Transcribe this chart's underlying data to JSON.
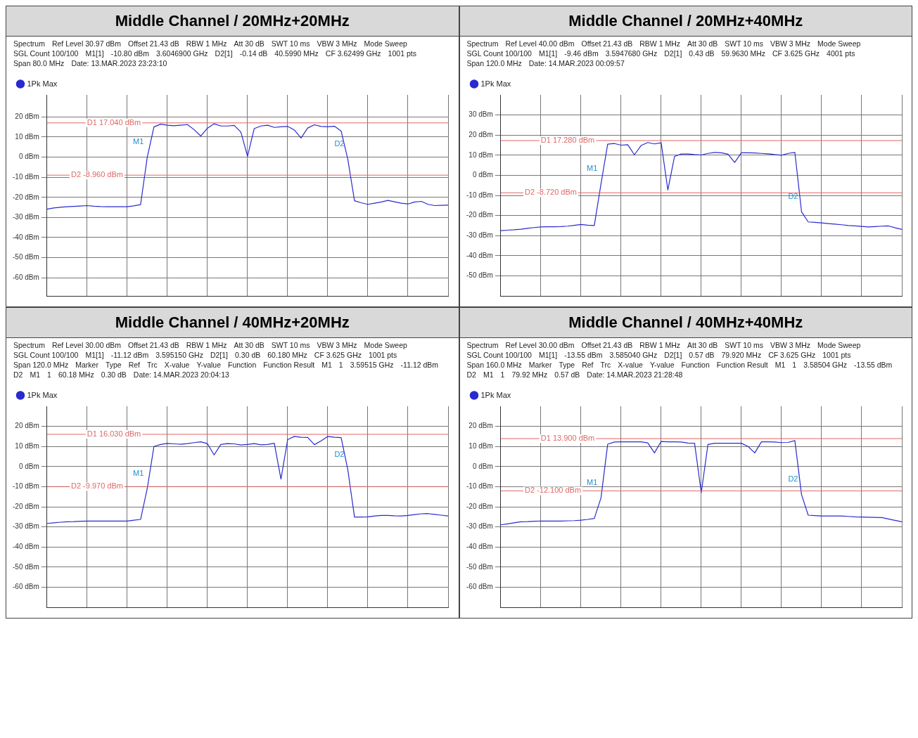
{
  "chart_data": [
    {
      "type": "line",
      "title": "Middle Channel / 20MHz+20MHz",
      "legend": "top left",
      "grid": true,
      "tick_labels": "y",
      "annotations": [
        "Spectrum",
        "Ref Level 30.97 dBm",
        "Offset 21.43 dB",
        "RBW 1 MHz",
        "Att 30 dB",
        "SWT 10 ms",
        "VBW 3 MHz",
        "Mode Sweep",
        "SGL Count 100/100",
        "M1[1]",
        "-10.80 dBm",
        "3.6046900 GHz",
        "D2[1]",
        "-0.14 dB",
        "40.5990 MHz",
        "CF 3.62499 GHz",
        "1001 pts",
        "Span 80.0 MHz",
        "Date: 13.MAR.2023 23:23:10"
      ],
      "categories": [
        null,
        null,
        null,
        null,
        null,
        null,
        null,
        null,
        null,
        null,
        null,
        null,
        null,
        null,
        null,
        null,
        null,
        null,
        null,
        null,
        null,
        null,
        null,
        null,
        null,
        null,
        null,
        null,
        null,
        null,
        null,
        null,
        null,
        null,
        null,
        null,
        null,
        null,
        null,
        null,
        null,
        null,
        null,
        null,
        null,
        null,
        null,
        null,
        null,
        null,
        null,
        null,
        null,
        null,
        null,
        null,
        null,
        null,
        null,
        null,
        null
      ],
      "ylim": [
        -69.03,
        30.97
      ],
      "yticks": [
        {
          "value": 20,
          "label": "20 dBm"
        },
        {
          "value": 10,
          "label": "10 dBm"
        },
        {
          "value": 0,
          "label": "0 dBm"
        },
        {
          "value": -10,
          "label": "-10 dBm"
        },
        {
          "value": -20,
          "label": "-20 dBm"
        },
        {
          "value": -30,
          "label": "-30 dBm"
        },
        {
          "value": -40,
          "label": "-40 dBm"
        },
        {
          "value": -50,
          "label": "-50 dBm"
        },
        {
          "value": -60,
          "label": "-60 dBm"
        }
      ],
      "ref_lines": [
        {
          "axis": "y",
          "value": 17.04,
          "label": "D1 17.040 dBm",
          "color": "#e06666"
        },
        {
          "axis": "y",
          "value": -8.96,
          "label": "D2 -8.960 dBm",
          "color": "#e06666"
        }
      ],
      "series": [
        {
          "name": "1Pk Max",
          "color": "#2a2ad0",
          "values": [
            -25.9,
            -25.3,
            -24.9,
            -24.7,
            -24.5,
            -24.3,
            -24.1,
            -24.4,
            -24.6,
            -24.7,
            -24.7,
            -24.7,
            -24.7,
            -24.2,
            -23.6,
            0,
            15.0,
            16.4,
            15.9,
            15.6,
            15.9,
            16.2,
            13.7,
            10.5,
            14.4,
            16.6,
            15.5,
            15.5,
            15.8,
            12.5,
            0.4,
            14.2,
            15.5,
            15.9,
            14.8,
            15.1,
            15.3,
            13.5,
            9.5,
            14.5,
            16.1,
            15.3,
            15.1,
            15.4,
            13.0,
            -1.1,
            -21.7,
            -22.7,
            -23.5,
            -22.9,
            -22.3,
            -21.5,
            -22.2,
            -22.9,
            -23.3,
            -22.3,
            -22.0,
            -23.5,
            -24.1,
            -24.0,
            -23.9
          ],
          "value_labels": [
            null,
            null,
            null,
            null,
            null,
            null,
            null,
            null,
            null,
            null,
            null,
            null,
            null,
            null,
            null,
            "M1",
            null,
            null,
            null,
            null,
            null,
            null,
            null,
            null,
            null,
            null,
            null,
            null,
            null,
            null,
            null,
            null,
            null,
            null,
            null,
            null,
            null,
            null,
            null,
            null,
            null,
            null,
            null,
            null,
            null,
            "D2",
            null,
            null,
            null,
            null,
            null,
            null,
            null,
            null,
            null,
            null,
            null,
            null,
            null,
            null,
            null
          ]
        }
      ]
    },
    {
      "type": "line",
      "title": "Middle Channel / 20MHz+40MHz",
      "legend": "top left",
      "grid": true,
      "tick_labels": "y",
      "annotations": [
        "Spectrum",
        "Ref Level 40.00 dBm",
        "Offset 21.43 dB",
        "RBW 1 MHz",
        "Att 30 dB",
        "SWT 10 ms",
        "VBW 3 MHz",
        "Mode Sweep",
        "SGL Count 100/100",
        "M1[1]",
        "-9.46 dBm",
        "3.5947680 GHz",
        "D2[1]",
        "0.43 dB",
        "59.9630 MHz",
        "CF 3.625 GHz",
        "4001 pts",
        "Span 120.0 MHz",
        "Date: 14.MAR.2023 00:09:57"
      ],
      "categories": [
        null,
        null,
        null,
        null,
        null,
        null,
        null,
        null,
        null,
        null,
        null,
        null,
        null,
        null,
        null,
        null,
        null,
        null,
        null,
        null,
        null,
        null,
        null,
        null,
        null,
        null,
        null,
        null,
        null,
        null,
        null,
        null,
        null,
        null,
        null,
        null,
        null,
        null,
        null,
        null,
        null,
        null,
        null,
        null,
        null,
        null,
        null,
        null,
        null,
        null,
        null,
        null,
        null,
        null,
        null,
        null,
        null,
        null,
        null,
        null,
        null
      ],
      "ylim": [
        -60,
        40
      ],
      "yticks": [
        {
          "value": 30,
          "label": "30 dBm"
        },
        {
          "value": 20,
          "label": "20 dBm"
        },
        {
          "value": 10,
          "label": "10 dBm"
        },
        {
          "value": 0,
          "label": "0 dBm"
        },
        {
          "value": -10,
          "label": "-10 dBm"
        },
        {
          "value": -20,
          "label": "-20 dBm"
        },
        {
          "value": -30,
          "label": "-30 dBm"
        },
        {
          "value": -40,
          "label": "-40 dBm"
        },
        {
          "value": -50,
          "label": "-50 dBm"
        }
      ],
      "ref_lines": [
        {
          "axis": "y",
          "value": 17.28,
          "label": "D1 17.280 dBm",
          "color": "#e06666"
        },
        {
          "axis": "y",
          "value": -8.72,
          "label": "D2 -8.720 dBm",
          "color": "#e06666"
        }
      ],
      "series": [
        {
          "name": "1Pk Max",
          "color": "#2a2ad0",
          "values": [
            -27.5,
            -27.3,
            -27.1,
            -26.8,
            -26.4,
            -26.0,
            -25.7,
            -25.6,
            -25.6,
            -25.5,
            -25.3,
            -24.9,
            -24.5,
            -24.8,
            -25.0,
            -4.3,
            15.5,
            15.8,
            15.0,
            15.2,
            10.2,
            14.8,
            16.3,
            15.6,
            16.2,
            -7.3,
            9.4,
            10.6,
            10.6,
            10.3,
            10.1,
            10.9,
            11.4,
            11.2,
            10.5,
            6.4,
            11.2,
            11.2,
            11.1,
            10.9,
            10.7,
            10.3,
            10.0,
            10.9,
            11.4,
            -18.2,
            -23.2,
            -23.4,
            -23.7,
            -24.0,
            -24.3,
            -24.6,
            -25.0,
            -25.2,
            -25.4,
            -25.7,
            -25.5,
            -25.3,
            -25.2,
            -26.1,
            -26.9
          ],
          "value_labels": [
            null,
            null,
            null,
            null,
            null,
            null,
            null,
            null,
            null,
            null,
            null,
            null,
            null,
            null,
            null,
            "M1",
            null,
            null,
            null,
            null,
            null,
            null,
            null,
            null,
            null,
            null,
            null,
            null,
            null,
            null,
            null,
            null,
            null,
            null,
            null,
            null,
            null,
            null,
            null,
            null,
            null,
            null,
            null,
            null,
            null,
            "D2",
            null,
            null,
            null,
            null,
            null,
            null,
            null,
            null,
            null,
            null,
            null,
            null,
            null,
            null,
            null
          ]
        }
      ]
    },
    {
      "type": "line",
      "title": "Middle Channel / 40MHz+20MHz",
      "legend": "top left",
      "grid": true,
      "tick_labels": "y",
      "annotations": [
        "Spectrum",
        "Ref Level 30.00 dBm",
        "Offset 21.43 dB",
        "RBW 1 MHz",
        "Att 30 dB",
        "SWT 10 ms",
        "VBW 3 MHz",
        "Mode Sweep",
        "SGL Count 100/100",
        "M1[1]",
        "-11.12 dBm",
        "3.595150 GHz",
        "D2[1]",
        "0.30 dB",
        "60.180 MHz",
        "CF 3.625 GHz",
        "1001 pts",
        "Span 120.0 MHz",
        "Marker",
        "Type",
        "Ref",
        "Trc",
        "X-value",
        "Y-value",
        "Function",
        "Function Result",
        "M1",
        "1",
        "3.59515 GHz",
        "-11.12 dBm",
        "D2",
        "M1",
        "1",
        "60.18 MHz",
        "0.30 dB",
        "Date: 14.MAR.2023 20:04:13"
      ],
      "categories": [
        null,
        null,
        null,
        null,
        null,
        null,
        null,
        null,
        null,
        null,
        null,
        null,
        null,
        null,
        null,
        null,
        null,
        null,
        null,
        null,
        null,
        null,
        null,
        null,
        null,
        null,
        null,
        null,
        null,
        null,
        null,
        null,
        null,
        null,
        null,
        null,
        null,
        null,
        null,
        null,
        null,
        null,
        null,
        null,
        null,
        null,
        null,
        null,
        null,
        null,
        null,
        null,
        null,
        null,
        null,
        null,
        null,
        null,
        null,
        null,
        null
      ],
      "ylim": [
        -70,
        30
      ],
      "yticks": [
        {
          "value": 20,
          "label": "20 dBm"
        },
        {
          "value": 10,
          "label": "10 dBm"
        },
        {
          "value": 0,
          "label": "0 dBm"
        },
        {
          "value": -10,
          "label": "-10 dBm"
        },
        {
          "value": -20,
          "label": "-20 dBm"
        },
        {
          "value": -30,
          "label": "-30 dBm"
        },
        {
          "value": -40,
          "label": "-40 dBm"
        },
        {
          "value": -50,
          "label": "-50 dBm"
        },
        {
          "value": -60,
          "label": "-60 dBm"
        }
      ],
      "ref_lines": [
        {
          "axis": "y",
          "value": 16.03,
          "label": "D1 16.030 dBm",
          "color": "#e06666"
        },
        {
          "axis": "y",
          "value": -9.97,
          "label": "D2 -9.970 dBm",
          "color": "#e06666"
        }
      ],
      "series": [
        {
          "name": "1Pk Max",
          "color": "#2a2ad0",
          "values": [
            -28.3,
            -28.0,
            -27.7,
            -27.5,
            -27.4,
            -27.2,
            -27.1,
            -27.1,
            -27.1,
            -27.1,
            -27.1,
            -27.1,
            -27.1,
            -26.7,
            -26.3,
            -10.9,
            10.0,
            11.0,
            11.5,
            11.3,
            11.1,
            11.4,
            11.9,
            12.3,
            11.4,
            5.8,
            11.0,
            11.4,
            11.3,
            10.7,
            11.0,
            11.4,
            10.8,
            11.0,
            11.6,
            -6.2,
            13.4,
            15.0,
            14.6,
            14.5,
            10.9,
            12.8,
            15.0,
            14.6,
            14.4,
            -1.6,
            -25.1,
            -25.1,
            -25.0,
            -24.6,
            -24.3,
            -24.3,
            -24.5,
            -24.6,
            -24.3,
            -23.9,
            -23.5,
            -23.4,
            -23.8,
            -24.2,
            -24.6
          ],
          "value_labels": [
            null,
            null,
            null,
            null,
            null,
            null,
            null,
            null,
            null,
            null,
            null,
            null,
            null,
            null,
            null,
            "M1",
            null,
            null,
            null,
            null,
            null,
            null,
            null,
            null,
            null,
            null,
            null,
            null,
            null,
            null,
            null,
            null,
            null,
            null,
            null,
            null,
            null,
            null,
            null,
            null,
            null,
            null,
            null,
            null,
            null,
            "D2",
            null,
            null,
            null,
            null,
            null,
            null,
            null,
            null,
            null,
            null,
            null,
            null,
            null,
            null,
            null
          ]
        }
      ]
    },
    {
      "type": "line",
      "title": "Middle Channel / 40MHz+40MHz",
      "legend": "top left",
      "grid": true,
      "tick_labels": "y",
      "annotations": [
        "Spectrum",
        "Ref Level 30.00 dBm",
        "Offset 21.43 dB",
        "RBW 1 MHz",
        "Att 30 dB",
        "SWT 10 ms",
        "VBW 3 MHz",
        "Mode Sweep",
        "SGL Count 100/100",
        "M1[1]",
        "-13.55 dBm",
        "3.585040 GHz",
        "D2[1]",
        "0.57 dB",
        "79.920 MHz",
        "CF 3.625 GHz",
        "1001 pts",
        "Span 160.0 MHz",
        "Marker",
        "Type",
        "Ref",
        "Trc",
        "X-value",
        "Y-value",
        "Function",
        "Function Result",
        "M1",
        "1",
        "3.58504 GHz",
        "-13.55 dBm",
        "D2",
        "M1",
        "1",
        "79.92 MHz",
        "0.57 dB",
        "Date: 14.MAR.2023 21:28:48"
      ],
      "categories": [
        null,
        null,
        null,
        null,
        null,
        null,
        null,
        null,
        null,
        null,
        null,
        null,
        null,
        null,
        null,
        null,
        null,
        null,
        null,
        null,
        null,
        null,
        null,
        null,
        null,
        null,
        null,
        null,
        null,
        null,
        null,
        null,
        null,
        null,
        null,
        null,
        null,
        null,
        null,
        null,
        null,
        null,
        null,
        null,
        null,
        null,
        null,
        null,
        null,
        null,
        null,
        null,
        null,
        null,
        null,
        null,
        null,
        null,
        null,
        null,
        null
      ],
      "ylim": [
        -70,
        30
      ],
      "yticks": [
        {
          "value": 20,
          "label": "20 dBm"
        },
        {
          "value": 10,
          "label": "10 dBm"
        },
        {
          "value": 0,
          "label": "0 dBm"
        },
        {
          "value": -10,
          "label": "-10 dBm"
        },
        {
          "value": -20,
          "label": "-20 dBm"
        },
        {
          "value": -30,
          "label": "-30 dBm"
        },
        {
          "value": -40,
          "label": "-40 dBm"
        },
        {
          "value": -50,
          "label": "-50 dBm"
        },
        {
          "value": -60,
          "label": "-60 dBm"
        }
      ],
      "ref_lines": [
        {
          "axis": "y",
          "value": 13.9,
          "label": "D1 13.900 dBm",
          "color": "#e06666"
        },
        {
          "axis": "y",
          "value": -12.1,
          "label": "D2 -12.100 dBm",
          "color": "#e06666"
        }
      ],
      "series": [
        {
          "name": "1Pk Max",
          "color": "#2a2ad0",
          "values": [
            -29.0,
            -28.5,
            -28.0,
            -27.5,
            -27.4,
            -27.2,
            -27.1,
            -27.1,
            -27.1,
            -27.1,
            -27.0,
            -26.9,
            -26.7,
            -26.3,
            -25.8,
            -15.6,
            11.1,
            12.2,
            12.3,
            12.3,
            12.3,
            12.3,
            11.8,
            6.8,
            12.5,
            12.3,
            12.3,
            12.2,
            11.7,
            11.6,
            -13.0,
            11.0,
            11.6,
            11.6,
            11.6,
            11.6,
            11.6,
            10.0,
            6.8,
            12.3,
            12.3,
            12.2,
            11.9,
            12.0,
            12.9,
            -14.0,
            -24.2,
            -24.4,
            -24.6,
            -24.6,
            -24.6,
            -24.6,
            -24.8,
            -25.0,
            -25.1,
            -25.2,
            -25.3,
            -25.4,
            -26.1,
            -26.8,
            -27.5
          ],
          "value_labels": [
            null,
            null,
            null,
            null,
            null,
            null,
            null,
            null,
            null,
            null,
            null,
            null,
            null,
            null,
            null,
            "M1",
            null,
            null,
            null,
            null,
            null,
            null,
            null,
            null,
            null,
            null,
            null,
            null,
            null,
            null,
            null,
            null,
            null,
            null,
            null,
            null,
            null,
            null,
            null,
            null,
            null,
            null,
            null,
            null,
            null,
            "D2",
            null,
            null,
            null,
            null,
            null,
            null,
            null,
            null,
            null,
            null,
            null,
            null,
            null,
            null,
            null
          ]
        }
      ]
    }
  ]
}
